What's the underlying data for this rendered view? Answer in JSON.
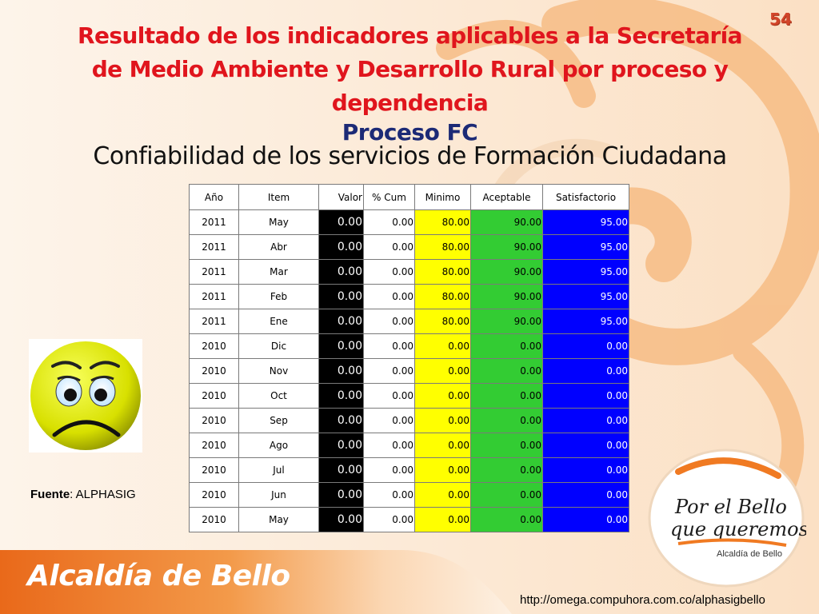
{
  "page_number": "54",
  "title": "Resultado de los indicadores aplicables a la Secretaría de Medio Ambiente y Desarrollo Rural  por proceso y dependencia",
  "process": "Proceso FC",
  "subtitle": "Confiabilidad de los servicios de Formación Ciudadana",
  "table": {
    "headers": [
      "Año",
      "Item",
      "Valor",
      "% Cum",
      "Minimo",
      "Aceptable",
      "Satisfactorio"
    ],
    "rows": [
      [
        "2011",
        "May",
        "0.00",
        "0.00",
        "80.00",
        "90.00",
        "95.00"
      ],
      [
        "2011",
        "Abr",
        "0.00",
        "0.00",
        "80.00",
        "90.00",
        "95.00"
      ],
      [
        "2011",
        "Mar",
        "0.00",
        "0.00",
        "80.00",
        "90.00",
        "95.00"
      ],
      [
        "2011",
        "Feb",
        "0.00",
        "0.00",
        "80.00",
        "90.00",
        "95.00"
      ],
      [
        "2011",
        "Ene",
        "0.00",
        "0.00",
        "80.00",
        "90.00",
        "95.00"
      ],
      [
        "2010",
        "Dic",
        "0.00",
        "0.00",
        "0.00",
        "0.00",
        "0.00"
      ],
      [
        "2010",
        "Nov",
        "0.00",
        "0.00",
        "0.00",
        "0.00",
        "0.00"
      ],
      [
        "2010",
        "Oct",
        "0.00",
        "0.00",
        "0.00",
        "0.00",
        "0.00"
      ],
      [
        "2010",
        "Sep",
        "0.00",
        "0.00",
        "0.00",
        "0.00",
        "0.00"
      ],
      [
        "2010",
        "Ago",
        "0.00",
        "0.00",
        "0.00",
        "0.00",
        "0.00"
      ],
      [
        "2010",
        "Jul",
        "0.00",
        "0.00",
        "0.00",
        "0.00",
        "0.00"
      ],
      [
        "2010",
        "Jun",
        "0.00",
        "0.00",
        "0.00",
        "0.00",
        "0.00"
      ],
      [
        "2010",
        "May",
        "0.00",
        "0.00",
        "0.00",
        "0.00",
        "0.00"
      ]
    ]
  },
  "source": {
    "label": "Fuente",
    "value": ": ALPHASIG"
  },
  "logo": {
    "line1": "Por el Bello",
    "line2": "que queremos",
    "line3": "Alcaldía de Bello"
  },
  "footer": {
    "brand": "Alcaldía de Bello",
    "url": "http://omega.compuhora.com.co/alphasigbello"
  },
  "colors": {
    "title": "#e0151d",
    "process": "#1c2a76",
    "valor_bg": "#000000",
    "minimo_bg": "#ffff00",
    "aceptable_bg": "#33cc33",
    "satisfactorio_bg": "#0000ff",
    "swirl": "#f29a4a",
    "footer": "#f07a22"
  },
  "icons": {
    "face": "sad-face-icon"
  }
}
